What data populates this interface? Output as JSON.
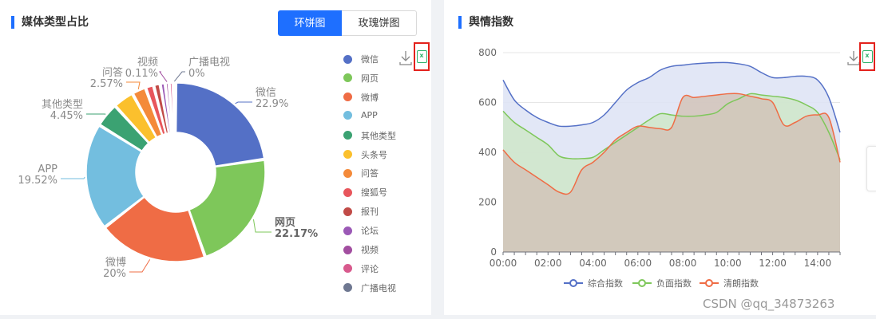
{
  "left_panel": {
    "title": "媒体类型占比",
    "toggle": {
      "active": "环饼图",
      "inactive": "玫瑰饼图"
    }
  },
  "right_panel": {
    "title": "舆情指数"
  },
  "watermark": "CSDN @qq_34873263",
  "colors": {
    "accent": "#1e6fff",
    "highlight_border": "#e3211c",
    "excel": "#2fb36b"
  },
  "icons": {
    "download": "download-icon",
    "excel": "excel-export-icon"
  },
  "chart_data": [
    {
      "type": "pie",
      "variant": "donut",
      "slices": [
        {
          "name": "微信",
          "value": 22.9,
          "label": "22.9%",
          "color": "#5470c6"
        },
        {
          "name": "网页",
          "value": 22.17,
          "label": "22.17%",
          "color": "#7ec75a"
        },
        {
          "name": "微博",
          "value": 20,
          "label": "20%",
          "color": "#ef6c45"
        },
        {
          "name": "APP",
          "value": 19.52,
          "label": "19.52%",
          "color": "#73bedf"
        },
        {
          "name": "其他类型",
          "value": 4.45,
          "label": "4.45%",
          "color": "#3ba272"
        },
        {
          "name": "头条号",
          "value": 3.8,
          "label": "",
          "color": "#fbc02d"
        },
        {
          "name": "问答",
          "value": 2.57,
          "label": "2.57%",
          "color": "#f48a3a"
        },
        {
          "name": "搜狐号",
          "value": 1.5,
          "label": "",
          "color": "#e8565c"
        },
        {
          "name": "报刊",
          "value": 1.2,
          "label": "",
          "color": "#c14b47"
        },
        {
          "name": "论坛",
          "value": 0.9,
          "label": "",
          "color": "#9b59b6"
        },
        {
          "name": "视频",
          "value": 0.11,
          "label": "0.11%",
          "color": "#a24ea0"
        },
        {
          "name": "评论",
          "value": 0.5,
          "label": "",
          "color": "#d85a8d"
        },
        {
          "name": "广播电视",
          "value": 0,
          "label": "0%",
          "color": "#6f7891"
        }
      ],
      "legend": [
        "微信",
        "网页",
        "微博",
        "APP",
        "其他类型",
        "头条号",
        "问答",
        "搜狐号",
        "报刊",
        "论坛",
        "视频",
        "评论",
        "广播电视"
      ],
      "legend_placement": "right"
    },
    {
      "type": "area",
      "x": [
        "00:00",
        "00:30",
        "01:00",
        "01:30",
        "02:00",
        "02:30",
        "03:00",
        "03:30",
        "04:00",
        "04:30",
        "05:00",
        "05:30",
        "06:00",
        "06:30",
        "07:00",
        "07:30",
        "08:00",
        "08:30",
        "09:00",
        "09:30",
        "10:00",
        "10:30",
        "11:00",
        "11:30",
        "12:00",
        "12:30",
        "13:00",
        "13:30",
        "14:00",
        "14:30",
        "15:00"
      ],
      "xticks": [
        "00:00",
        "02:00",
        "04:00",
        "06:00",
        "08:00",
        "10:00",
        "12:00",
        "14:00"
      ],
      "ylim": [
        0,
        800
      ],
      "yticks": [
        0,
        200,
        400,
        600,
        800
      ],
      "grid": true,
      "legend_placement": "bottom",
      "series": [
        {
          "name": "综合指数",
          "color": "#5470c6",
          "fill": "#dde3f5",
          "values": [
            690,
            610,
            570,
            540,
            520,
            505,
            505,
            510,
            520,
            550,
            600,
            650,
            680,
            700,
            730,
            745,
            750,
            755,
            758,
            760,
            760,
            755,
            745,
            720,
            700,
            700,
            705,
            705,
            690,
            620,
            480
          ]
        },
        {
          "name": "负面指数",
          "color": "#7ec75a",
          "fill": "#cfe6c9",
          "values": [
            565,
            520,
            490,
            460,
            430,
            385,
            375,
            375,
            380,
            410,
            440,
            470,
            500,
            530,
            555,
            550,
            545,
            545,
            550,
            560,
            595,
            615,
            635,
            630,
            625,
            620,
            610,
            590,
            560,
            480,
            370
          ]
        },
        {
          "name": "清朗指数",
          "color": "#ef6c45",
          "fill": "#d2c3b9",
          "values": [
            410,
            360,
            330,
            300,
            270,
            240,
            240,
            330,
            360,
            400,
            450,
            480,
            505,
            500,
            495,
            500,
            620,
            620,
            625,
            630,
            635,
            635,
            625,
            615,
            600,
            510,
            520,
            545,
            550,
            540,
            360
          ]
        }
      ]
    }
  ]
}
